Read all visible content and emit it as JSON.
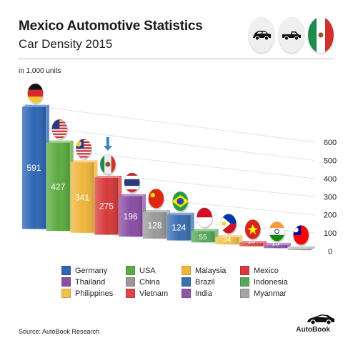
{
  "header": {
    "title": "Mexico Automotive Statistics",
    "subtitle": "Car Density 2015",
    "unit_note": "in 1,000 units"
  },
  "top_icons": [
    "car-sedan-icon",
    "car-pickup-icon",
    "mexico-flag-icon"
  ],
  "chart_data": {
    "type": "bar",
    "title": "Car Density 2015",
    "ylabel": "in 1,000 units",
    "xlabel": "",
    "ylim": [
      0,
      600
    ],
    "yticks": [
      0,
      100,
      200,
      300,
      400,
      500,
      600
    ],
    "categories": [
      "Germany",
      "USA",
      "Malaysia",
      "Mexico",
      "Thailand",
      "China",
      "Brazil",
      "Indonesia",
      "Philippines",
      "Vietnam",
      "India",
      "Myanmar"
    ],
    "values": [
      591,
      427,
      341,
      275,
      196,
      128,
      124,
      55,
      34,
      16,
      15,
      7
    ],
    "value_labels": [
      "591",
      "427",
      "341",
      "275",
      "196",
      "128",
      "124",
      "55",
      "34",
      "16",
      "15",
      "7"
    ],
    "colors": [
      "#2e66b5",
      "#5cab3f",
      "#f0b63c",
      "#d63a3a",
      "#8a4fa3",
      "#9a9a9a",
      "#3b6fb2",
      "#56a85a",
      "#f2bf4a",
      "#d94747",
      "#8e56a6",
      "#a5a5a5"
    ],
    "highlight": "Mexico",
    "legend_placement": "bottom",
    "grid": true
  },
  "legend": [
    {
      "label": "Germany",
      "color": "#2e66b5"
    },
    {
      "label": "USA",
      "color": "#5cab3f"
    },
    {
      "label": "Malaysia",
      "color": "#f0b63c"
    },
    {
      "label": "Mexico",
      "color": "#d63a3a"
    },
    {
      "label": "Thailand",
      "color": "#8a4fa3"
    },
    {
      "label": "China",
      "color": "#9a9a9a"
    },
    {
      "label": "Brazil",
      "color": "#3b6fb2"
    },
    {
      "label": "Indonesia",
      "color": "#56a85a"
    },
    {
      "label": "Philippines",
      "color": "#f2bf4a"
    },
    {
      "label": "Vietnam",
      "color": "#d94747"
    },
    {
      "label": "India",
      "color": "#8e56a6"
    },
    {
      "label": "Myanmar",
      "color": "#a5a5a5"
    }
  ],
  "footer": {
    "source": "Source: AutoBook Research",
    "brand": "AutoBook"
  }
}
